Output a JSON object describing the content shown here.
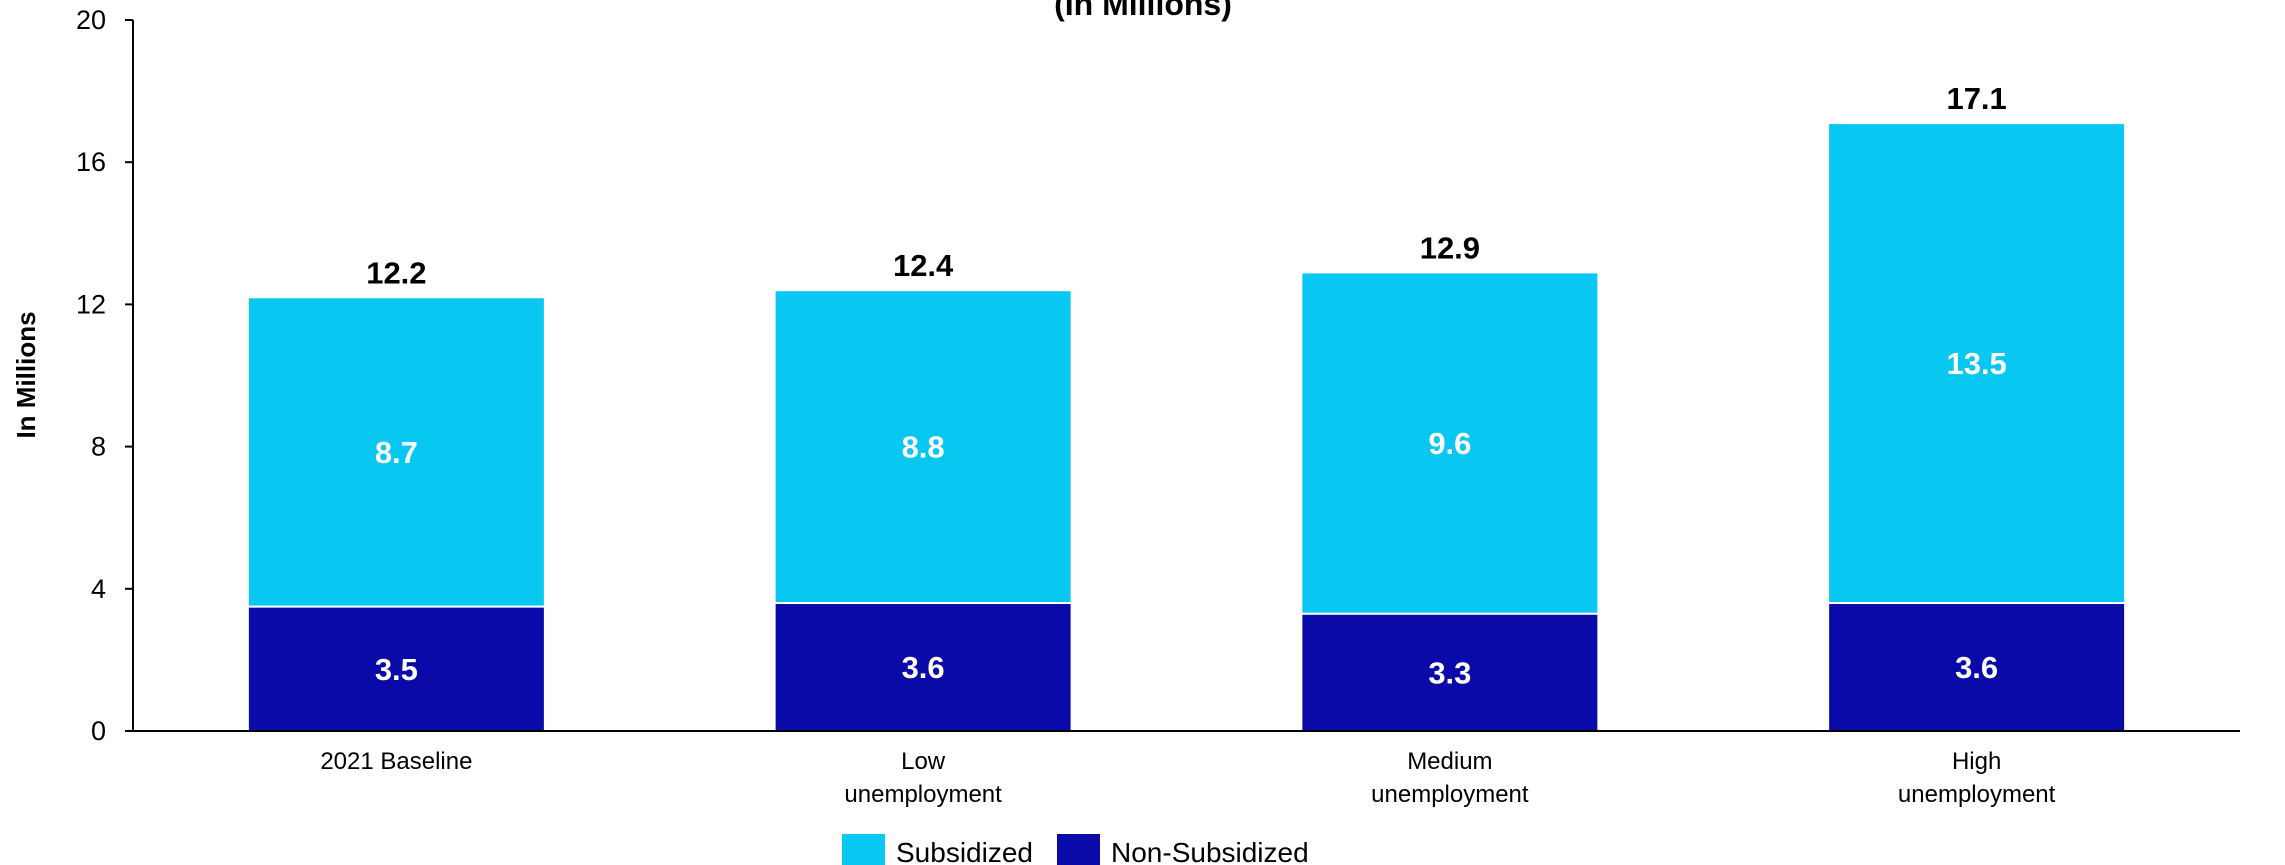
{
  "chart_data": {
    "type": "bar",
    "stacked": true,
    "title": "(In Millions)",
    "ylabel": "In Millions",
    "xlabel": "",
    "ylim": [
      0,
      20
    ],
    "yticks": [
      0,
      4,
      8,
      12,
      16,
      20
    ],
    "categories": [
      [
        "2021 Baseline"
      ],
      [
        "Low",
        "unemployment"
      ],
      [
        "Medium",
        "unemployment"
      ],
      [
        "High",
        "unemployment"
      ]
    ],
    "series": [
      {
        "name": "Non-Subsidized",
        "color": "#0a0aa8",
        "values": [
          3.5,
          3.6,
          3.3,
          3.6
        ]
      },
      {
        "name": "Subsidized",
        "color": "#08c8f2",
        "values": [
          8.7,
          8.8,
          9.6,
          13.5
        ]
      }
    ],
    "totals": [
      12.2,
      12.4,
      12.9,
      17.1
    ],
    "legend": {
      "position": "bottom",
      "order": [
        "Subsidized",
        "Non-Subsidized"
      ]
    },
    "grid": false
  }
}
